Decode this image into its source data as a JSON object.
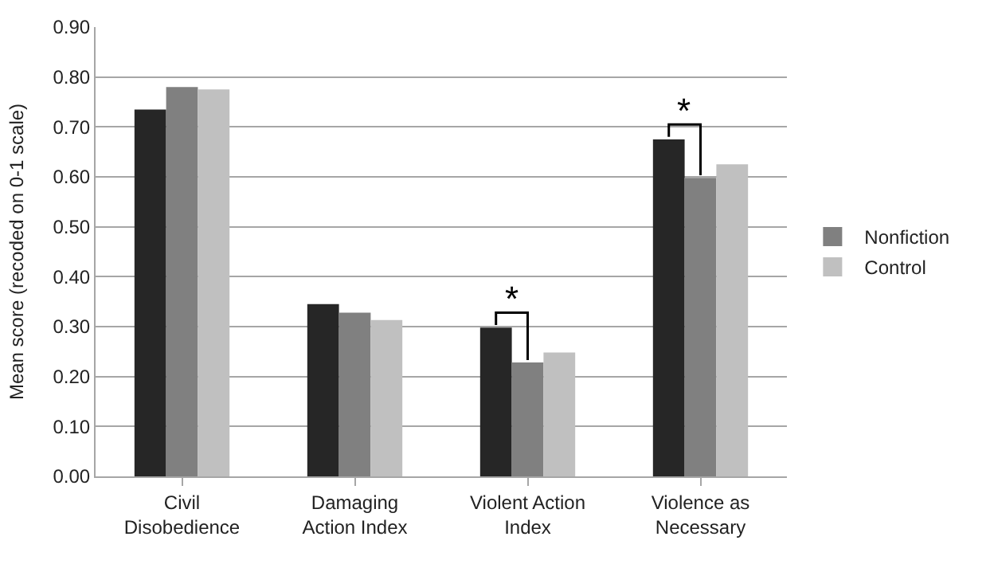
{
  "chart_data": {
    "type": "bar",
    "ylabel": "Mean score (recoded on 0-1 scale)",
    "categories": [
      "Civil\nDisobedience",
      "Damaging\nAction Index",
      "Violent Action\nIndex",
      "Violence as\nNecessary"
    ],
    "series": [
      {
        "color": "#262626",
        "values": [
          0.735,
          0.345,
          0.298,
          0.675
        ]
      },
      {
        "name": "Nonfiction",
        "color": "#808080",
        "values": [
          0.78,
          0.328,
          0.228,
          0.598
        ]
      },
      {
        "name": "Control",
        "color": "#c0c0c0",
        "values": [
          0.775,
          0.313,
          0.248,
          0.625
        ]
      }
    ],
    "ylim": [
      0,
      0.9
    ],
    "yticks": [
      {
        "value": 0,
        "label": "0.00"
      },
      {
        "value": 0.1,
        "label": "0.10"
      },
      {
        "value": 0.2,
        "label": "0.20"
      },
      {
        "value": 0.3,
        "label": "0.30"
      },
      {
        "value": 0.4,
        "label": "0.40"
      },
      {
        "value": 0.5,
        "label": "0.50"
      },
      {
        "value": 0.6,
        "label": "0.60"
      },
      {
        "value": 0.7,
        "label": "0.70"
      },
      {
        "value": 0.8,
        "label": "0.80"
      },
      {
        "value": 0.9,
        "label": "0.90"
      }
    ],
    "annotations": [
      "*",
      "*"
    ],
    "grid": "y",
    "legend": "right"
  }
}
